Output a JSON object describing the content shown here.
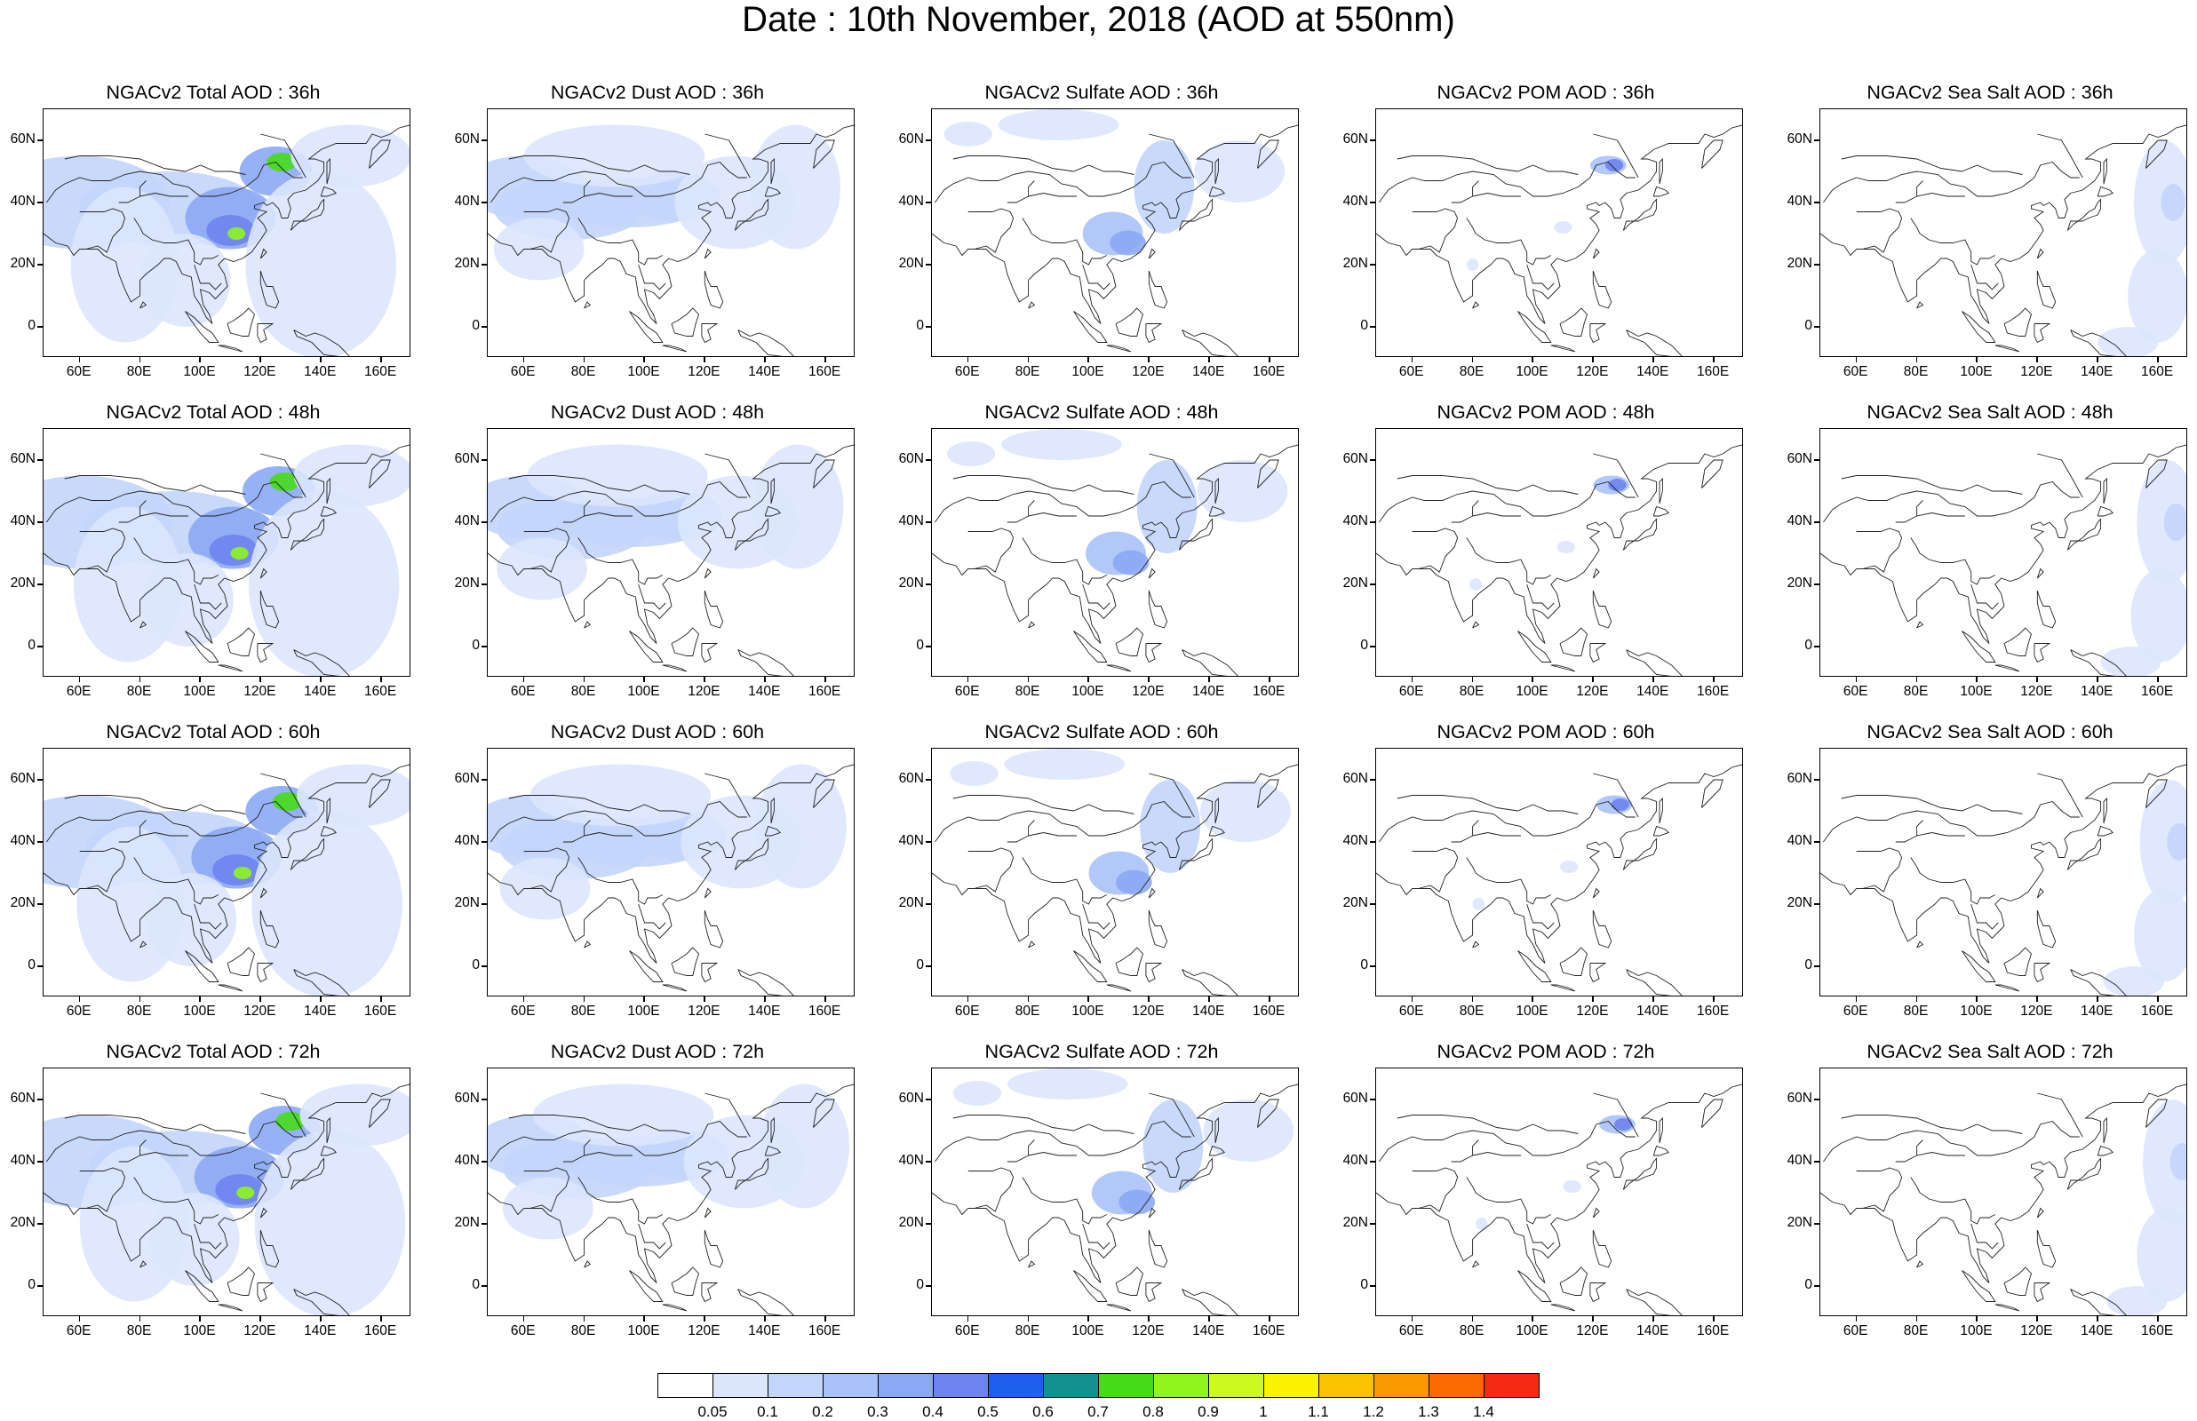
{
  "title": "Date : 10th November, 2018 (AOD at 550nm)",
  "panels": [
    [
      "NGACv2 Total AOD : 36h",
      "NGACv2 Dust AOD : 36h",
      "NGACv2 Sulfate AOD : 36h",
      "NGACv2 POM AOD : 36h",
      "NGACv2 Sea Salt AOD : 36h"
    ],
    [
      "NGACv2 Total AOD : 48h",
      "NGACv2 Dust AOD : 48h",
      "NGACv2 Sulfate AOD : 48h",
      "NGACv2 POM AOD : 48h",
      "NGACv2 Sea Salt AOD : 48h"
    ],
    [
      "NGACv2 Total AOD : 60h",
      "NGACv2 Dust AOD : 60h",
      "NGACv2 Sulfate AOD : 60h",
      "NGACv2 POM AOD : 60h",
      "NGACv2 Sea Salt AOD : 60h"
    ],
    [
      "NGACv2 Total AOD : 72h",
      "NGACv2 Dust AOD : 72h",
      "NGACv2 Sulfate AOD : 72h",
      "NGACv2 POM AOD : 72h",
      "NGACv2 Sea Salt  AOD : 72h"
    ]
  ],
  "y_ticks": [
    "60N",
    "40N",
    "20N",
    "0"
  ],
  "x_ticks": [
    "60E",
    "80E",
    "100E",
    "120E",
    "140E",
    "160E"
  ],
  "colorbar": {
    "labels": [
      "0.05",
      "0.1",
      "0.2",
      "0.3",
      "0.4",
      "0.5",
      "0.6",
      "0.7",
      "0.8",
      "0.9",
      "1",
      "1.1",
      "1.2",
      "1.3",
      "1.4"
    ],
    "colors": [
      "#ffffff",
      "#dbe6fd",
      "#c3d5fb",
      "#a9c2f8",
      "#8ba9f4",
      "#6d84ef",
      "#1f5ff0",
      "#139090",
      "#46dc1a",
      "#8ef51e",
      "#cdfa1e",
      "#fbf300",
      "#fbc300",
      "#fb9a00",
      "#fb6a00",
      "#f42b12"
    ]
  }
}
